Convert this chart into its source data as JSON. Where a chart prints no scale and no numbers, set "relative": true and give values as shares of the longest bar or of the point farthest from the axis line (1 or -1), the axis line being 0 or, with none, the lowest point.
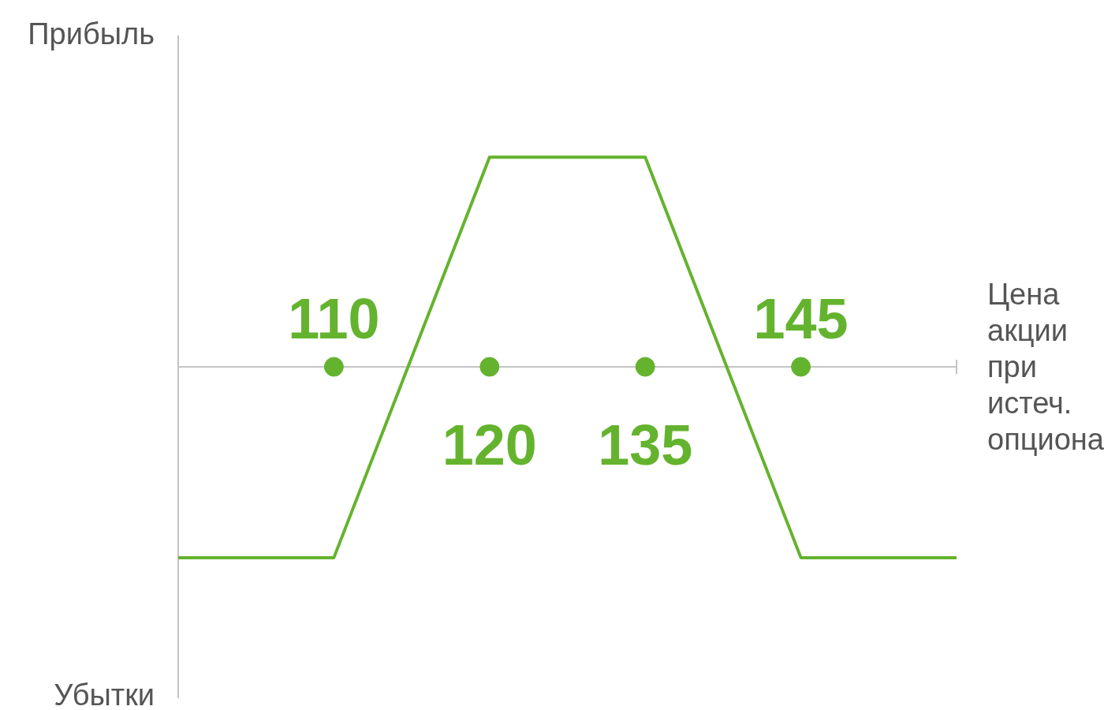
{
  "chart_data": {
    "type": "line",
    "relative": true,
    "xlabel": "Цена акции при истеч. опциона",
    "annotations": [
      "Прибыль",
      "Убытки"
    ],
    "categories": [
      null,
      "110",
      "120",
      "135",
      "145",
      null
    ],
    "series": [
      {
        "color": "#64b32e",
        "values": [
          -0.91,
          -0.91,
          1,
          1,
          -0.91,
          -0.91
        ],
        "marker": "none"
      },
      {
        "type": "scatter",
        "color": "#64b32e",
        "x": [
          "110",
          "120",
          "135",
          "145"
        ],
        "values": [
          0,
          0,
          0,
          0
        ],
        "marker": "circle"
      }
    ],
    "legend": false
  }
}
